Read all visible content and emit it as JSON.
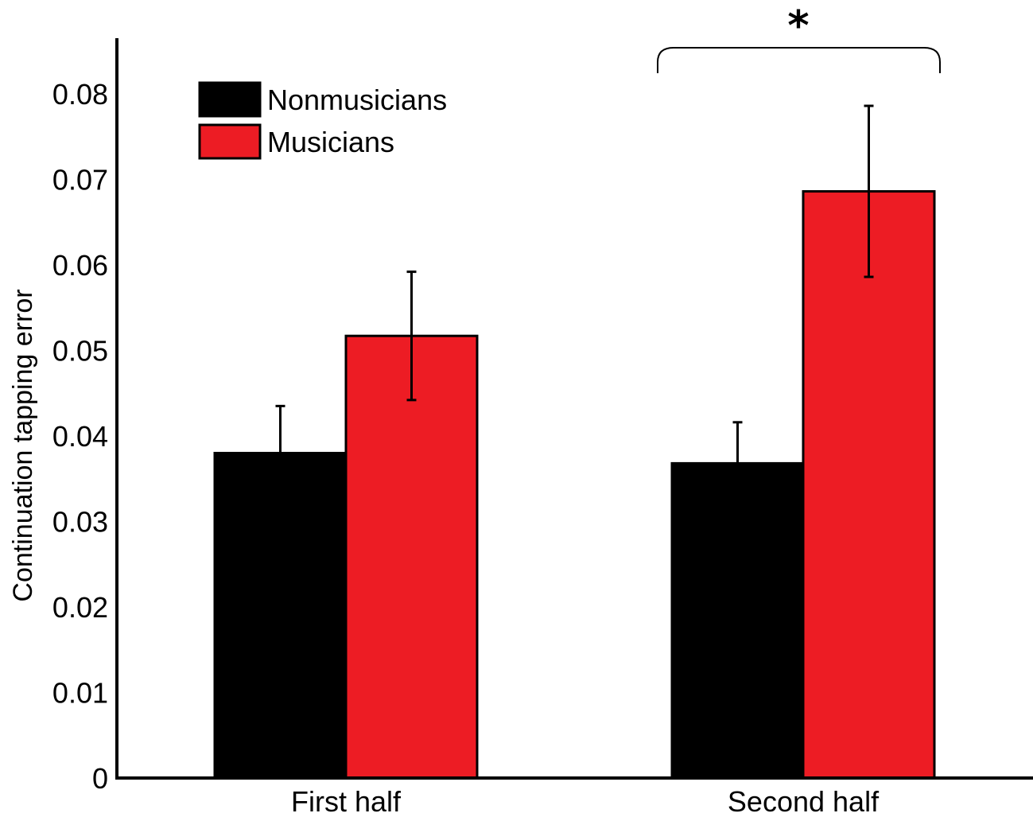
{
  "chart_data": {
    "type": "bar",
    "title": "",
    "xlabel": "",
    "ylabel": "Continuation tapping error",
    "ylim": [
      0,
      0.08
    ],
    "yticks": [
      "0",
      "0.01",
      "0.02",
      "0.03",
      "0.04",
      "0.05",
      "0.06",
      "0.07",
      "0.08"
    ],
    "categories": [
      "First half",
      "Second half"
    ],
    "series": [
      {
        "name": "Nonmusicians",
        "color": "#000000",
        "values": [
          0.038,
          0.0368
        ],
        "error": [
          0.0055,
          0.0048
        ]
      },
      {
        "name": "Musicians",
        "color": "#ed1c24",
        "values": [
          0.0517,
          0.0686
        ],
        "error": [
          0.0075,
          0.01
        ]
      }
    ],
    "legend_position": "top-left",
    "grid": false,
    "annotations": [
      {
        "type": "significance-bracket",
        "category": "Second half",
        "label": "*"
      }
    ]
  }
}
